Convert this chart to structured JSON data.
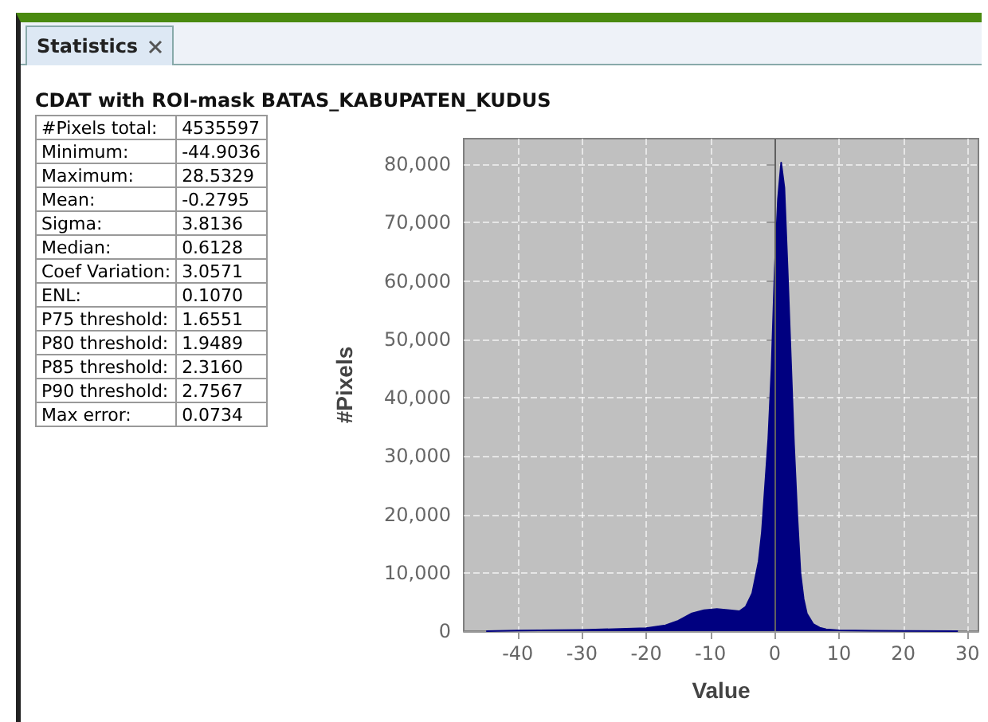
{
  "chart_data": [
    {
      "type": "other",
      "title": "Statistics",
      "subtitle": "CDAT with ROI-mask BATAS_KABUPATEN_KUDUS",
      "annotations": [
        "#Pixels total:",
        "4535597",
        "Minimum:",
        "-44.9036",
        "Maximum:",
        "28.5329",
        "Mean:",
        "-0.2795",
        "Sigma:",
        "3.8136",
        "Median:",
        "0.6128",
        "Coef Variation:",
        "3.0571",
        "ENL:",
        "0.1070",
        "P75 threshold:",
        "1.6551",
        "P80 threshold:",
        "1.9489",
        "P85 threshold:",
        "2.3160",
        "P90 threshold:",
        "2.7567",
        "Max error:",
        "0.0734"
      ]
    },
    {
      "type": "area",
      "xlabel": "Value",
      "ylabel": "#Pixels",
      "x": [
        -44.9,
        -40,
        -30,
        -20,
        -17,
        -15,
        -13,
        -11,
        -9,
        -7,
        -5.5,
        -4.5,
        -3.5,
        -2.5,
        -2,
        -1.5,
        -1,
        -0.5,
        0,
        0.5,
        1,
        1.5,
        2,
        2.5,
        3,
        3.5,
        4,
        4.5,
        5,
        6,
        7,
        8,
        10,
        15,
        20,
        28.5
      ],
      "series": [
        {
          "color": "#000080",
          "values": [
            0,
            100,
            200,
            500,
            1000,
            1800,
            3000,
            3600,
            3800,
            3600,
            3400,
            4200,
            6500,
            12000,
            17000,
            25000,
            33000,
            45000,
            62000,
            74000,
            80300,
            76000,
            62000,
            47000,
            32000,
            20000,
            10000,
            5500,
            3000,
            1200,
            600,
            300,
            150,
            80,
            30,
            0
          ]
        }
      ],
      "xlim": [
        -48.4,
        31.7
      ],
      "xticks": [
        -40,
        -30,
        -20,
        -10,
        0,
        10,
        20,
        30
      ],
      "ylim": [
        0,
        84400
      ],
      "yticks": [
        0,
        {
          "value": 10000,
          "label": "10,000"
        },
        {
          "value": 20000,
          "label": "20,000"
        },
        {
          "value": 30000,
          "label": "30,000"
        },
        {
          "value": 40000,
          "label": "40,000"
        },
        {
          "value": 50000,
          "label": "50,000"
        },
        {
          "value": 60000,
          "label": "60,000"
        },
        {
          "value": 70000,
          "label": "70,000"
        },
        {
          "value": 80000,
          "label": "80,000"
        }
      ],
      "ref_lines": [
        {
          "axis": "x",
          "value": 0,
          "color": "#606060"
        }
      ],
      "grid": true
    }
  ]
}
